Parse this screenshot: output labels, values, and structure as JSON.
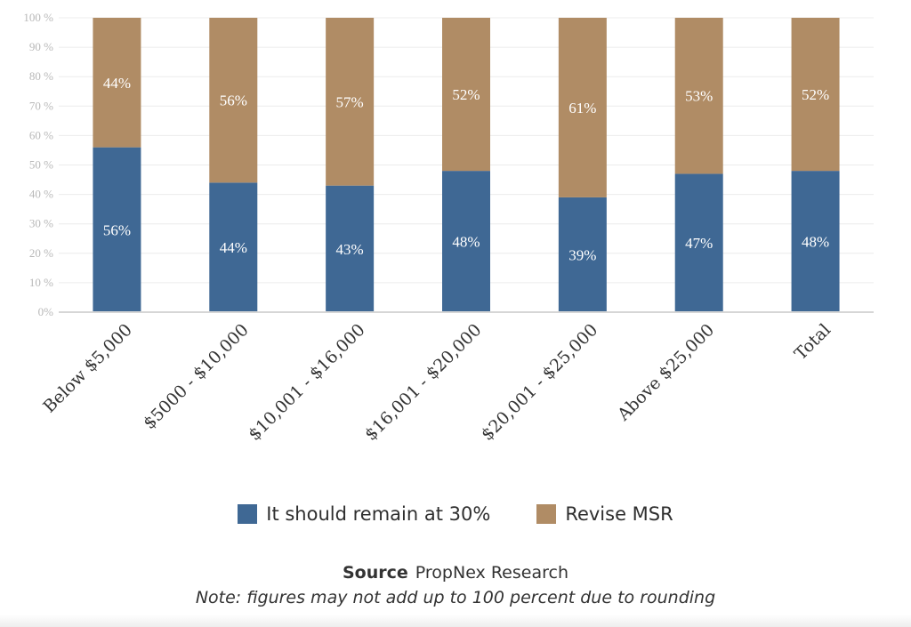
{
  "colors": {
    "series1": "#3f6894",
    "series2": "#b08c65"
  },
  "chart_data": {
    "type": "bar",
    "stacked": true,
    "categories": [
      "Below $5,000",
      "$5000 - $10,000",
      "$10,001 - $16,000",
      "$16,001 - $20,000",
      "$20,001 - $25,000",
      "Above $25,000",
      "Total"
    ],
    "series": [
      {
        "name": "It should remain at 30%",
        "values": [
          56,
          44,
          43,
          48,
          39,
          47,
          48
        ],
        "labels": [
          "56%",
          "44%",
          "43%",
          "48%",
          "39%",
          "47%",
          "48%"
        ]
      },
      {
        "name": "Revise MSR",
        "values": [
          44,
          56,
          57,
          52,
          61,
          53,
          52
        ],
        "labels": [
          "44%",
          "56%",
          "57%",
          "52%",
          "61%",
          "53%",
          "52%"
        ]
      }
    ],
    "y_ticks": [
      "0%",
      "10 %",
      "20 %",
      "30 %",
      "40 %",
      "50 %",
      "60 %",
      "70 %",
      "80 %",
      "90 %",
      "100 %"
    ],
    "ylim": [
      0,
      100
    ],
    "grid": true,
    "legend_position": "bottom"
  },
  "footer": {
    "source_label": "Source",
    "source_value": "PropNex Research",
    "note": "Note: figures may not add up to 100 percent due to rounding"
  }
}
